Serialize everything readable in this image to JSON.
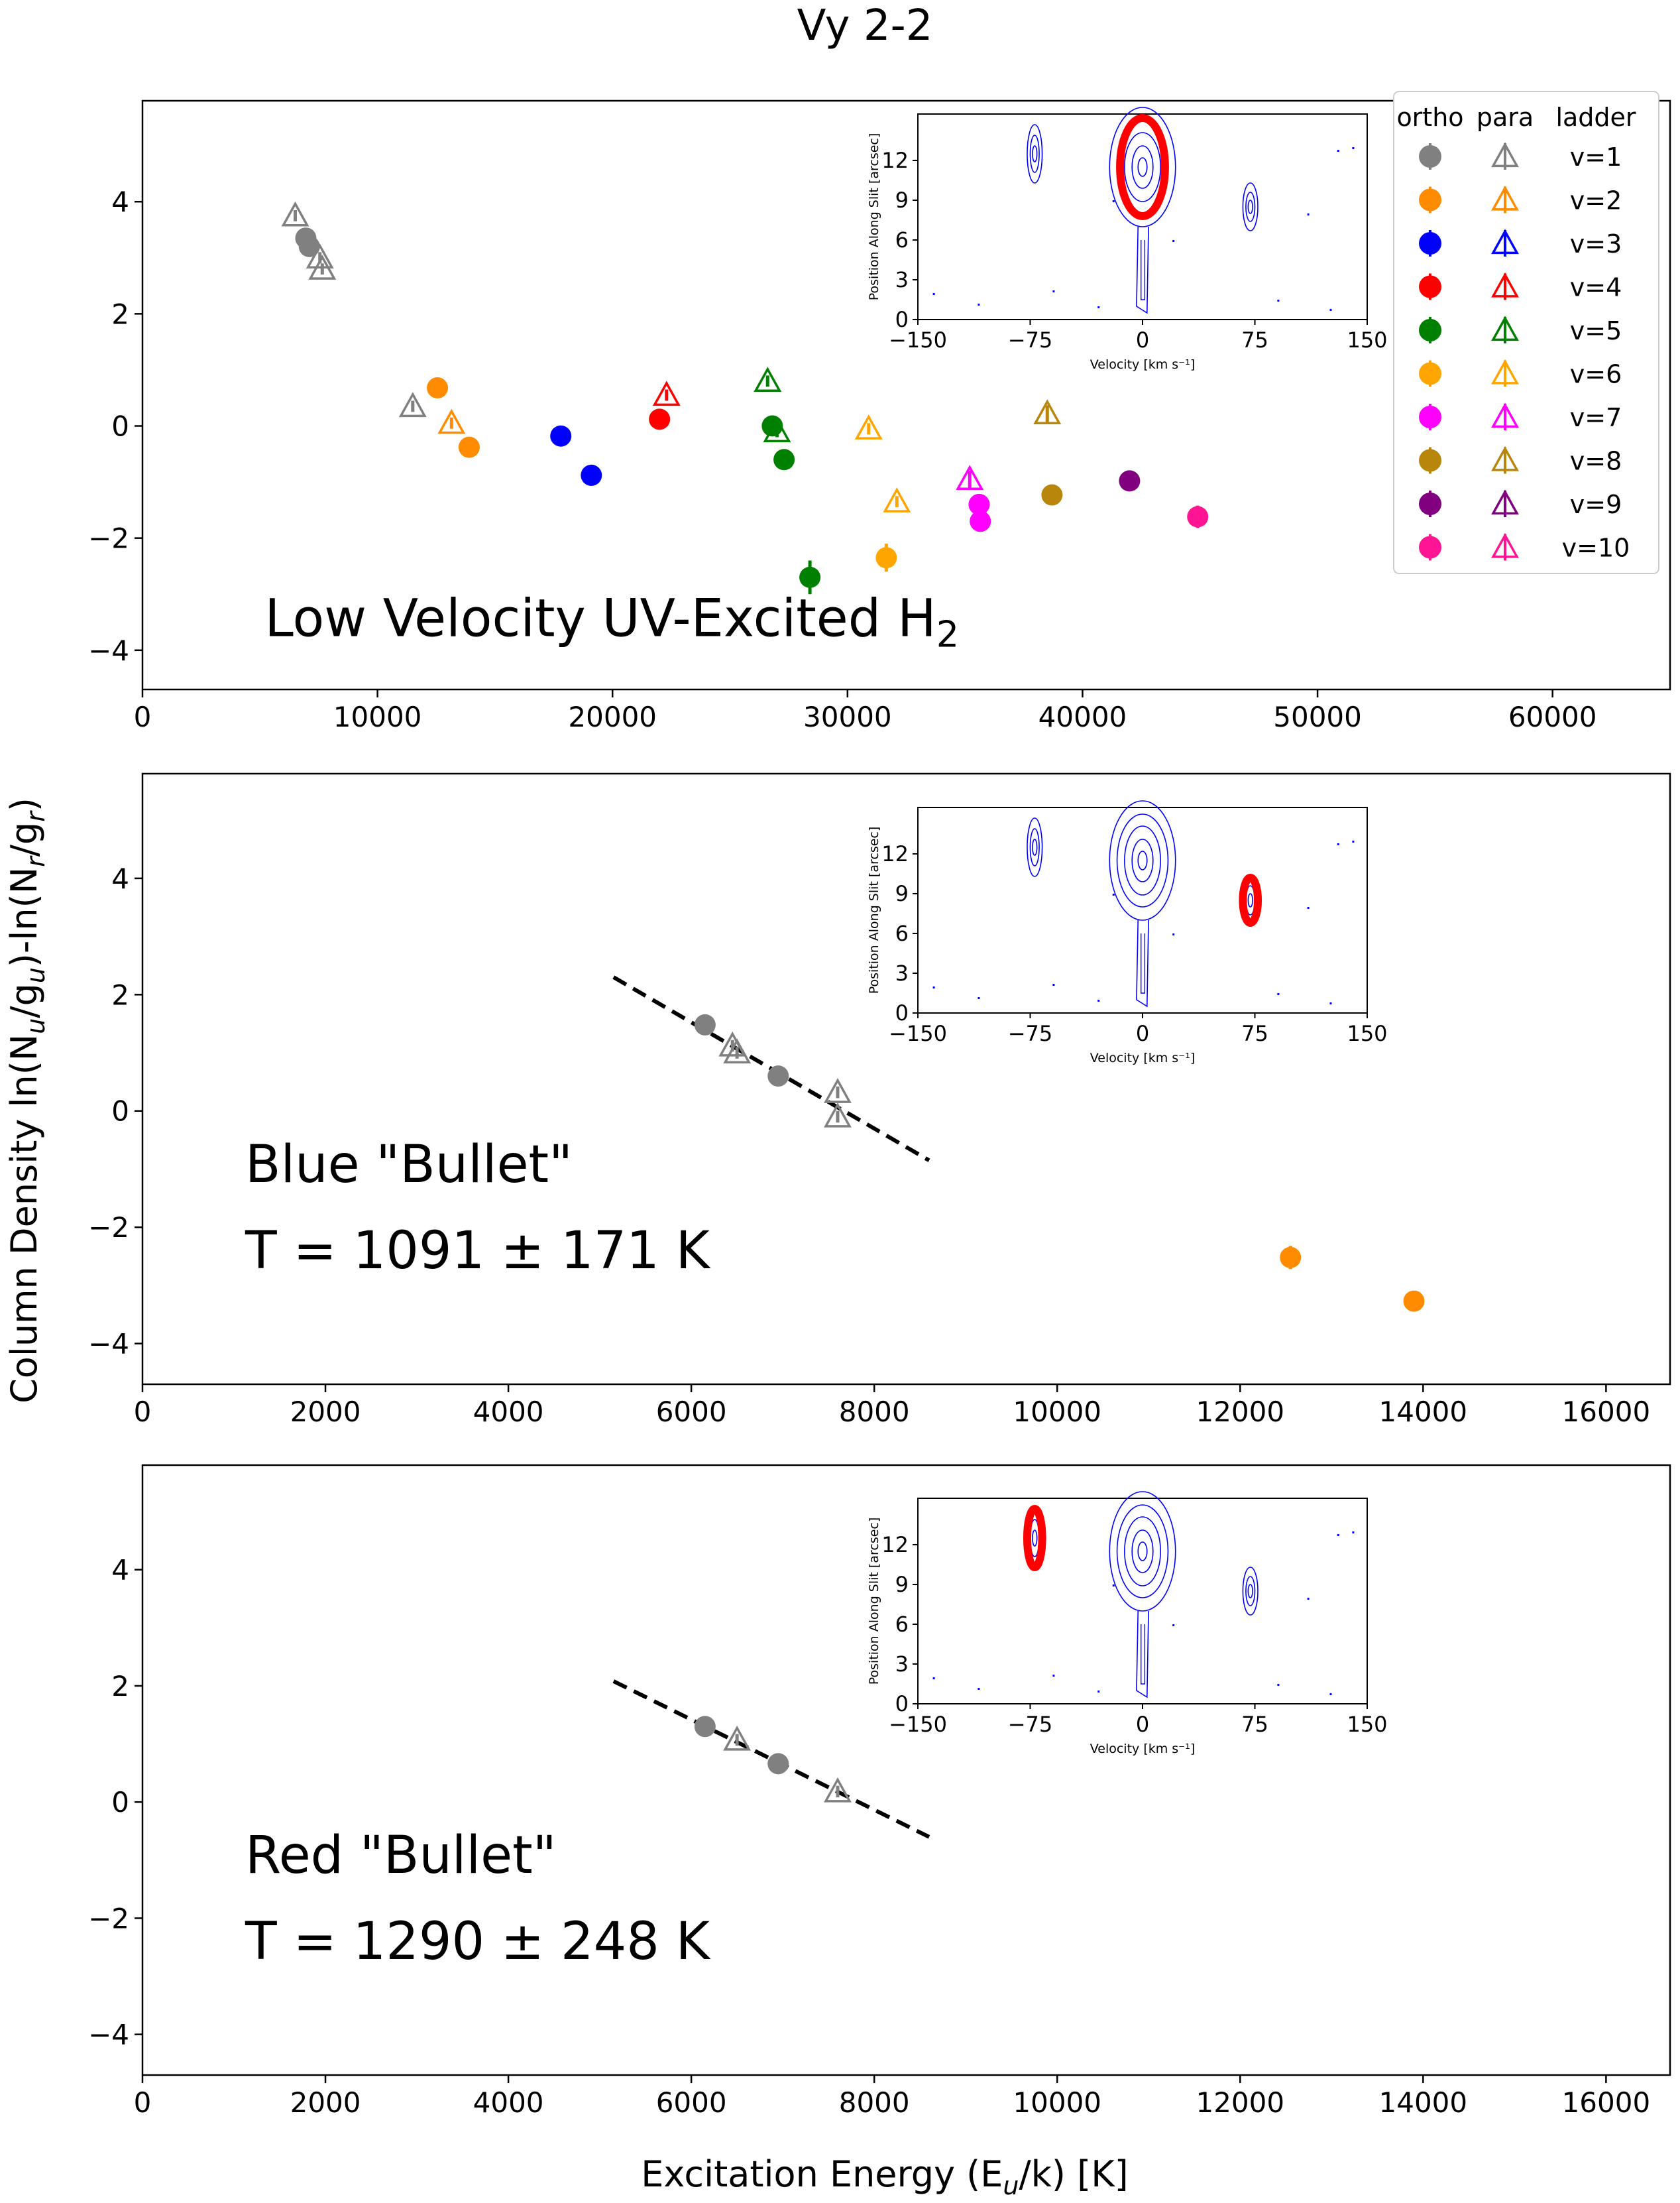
{
  "figure": {
    "title": "Vy 2-2",
    "ylabel": "Column Density    ln(N_u/g_u)-ln(N_r/g_r)",
    "xlabel": "Excitation Energy      (E_u/k)      [K]"
  },
  "legend": {
    "headers": [
      "ortho",
      "para",
      "ladder"
    ],
    "entries": [
      {
        "label": "v=1",
        "color": "#808080"
      },
      {
        "label": "v=2",
        "color": "#ff8c00"
      },
      {
        "label": "v=3",
        "color": "#0000ff"
      },
      {
        "label": "v=4",
        "color": "#ff0000"
      },
      {
        "label": "v=5",
        "color": "#008000"
      },
      {
        "label": "v=6",
        "color": "#ffa500"
      },
      {
        "label": "v=7",
        "color": "#ff00ff"
      },
      {
        "label": "v=8",
        "color": "#b8860b"
      },
      {
        "label": "v=9",
        "color": "#800080"
      },
      {
        "label": "v=10",
        "color": "#ff1493"
      }
    ]
  },
  "inset": {
    "xlabel": "Velocity [km s⁻¹]",
    "ylabel": "Position Along Slit [arcsec]",
    "xticks": [
      "−150",
      "−75",
      "0",
      "75",
      "150"
    ],
    "yticks": [
      "0",
      "3",
      "6",
      "9",
      "12"
    ],
    "highlight_color": "#ff0000",
    "contour_color": "#0000ff"
  },
  "chart_data": [
    {
      "type": "scatter",
      "panel": "top",
      "annotation": "Low Velocity UV-Excited H",
      "annotation_sub": "2",
      "xlim": [
        0,
        65000
      ],
      "ylim": [
        -4.7,
        5.8
      ],
      "xticks": [
        0,
        10000,
        20000,
        30000,
        40000,
        50000,
        60000
      ],
      "yticks": [
        4,
        2,
        0,
        -2,
        -4
      ],
      "inset_highlight": {
        "velocity": 0,
        "position": 11.5,
        "rx": 15,
        "ry": 3.7
      },
      "points": [
        {
          "v": 1,
          "kind": "para",
          "x": 6500,
          "y": 3.75,
          "err": 0.1
        },
        {
          "v": 1,
          "kind": "ortho",
          "x": 6950,
          "y": 3.35,
          "err": 0.1
        },
        {
          "v": 1,
          "kind": "ortho",
          "x": 7100,
          "y": 3.2,
          "err": 0.1
        },
        {
          "v": 1,
          "kind": "para",
          "x": 7550,
          "y": 3.0,
          "err": 0.1
        },
        {
          "v": 1,
          "kind": "para",
          "x": 7650,
          "y": 2.8,
          "err": 0.1
        },
        {
          "v": 1,
          "kind": "para",
          "x": 11500,
          "y": 0.35,
          "err": 0.1
        },
        {
          "v": 2,
          "kind": "ortho",
          "x": 12550,
          "y": 0.68,
          "err": 0.1
        },
        {
          "v": 2,
          "kind": "para",
          "x": 13150,
          "y": 0.05,
          "err": 0.1
        },
        {
          "v": 2,
          "kind": "ortho",
          "x": 13900,
          "y": -0.38,
          "err": 0.1
        },
        {
          "v": 3,
          "kind": "ortho",
          "x": 17800,
          "y": -0.18,
          "err": 0.15
        },
        {
          "v": 3,
          "kind": "ortho",
          "x": 19100,
          "y": -0.88,
          "err": 0.1
        },
        {
          "v": 4,
          "kind": "ortho",
          "x": 22000,
          "y": 0.12,
          "err": 0.1
        },
        {
          "v": 4,
          "kind": "para",
          "x": 22300,
          "y": 0.55,
          "err": 0.1
        },
        {
          "v": 5,
          "kind": "para",
          "x": 26600,
          "y": 0.8,
          "err": 0.1
        },
        {
          "v": 5,
          "kind": "ortho",
          "x": 26800,
          "y": 0.0,
          "err": 0.1
        },
        {
          "v": 5,
          "kind": "para",
          "x": 27000,
          "y": -0.1,
          "err": 0.1
        },
        {
          "v": 5,
          "kind": "ortho",
          "x": 27300,
          "y": -0.6,
          "err": 0.1
        },
        {
          "v": 5,
          "kind": "ortho",
          "x": 28400,
          "y": -2.7,
          "err": 0.3
        },
        {
          "v": 6,
          "kind": "para",
          "x": 30900,
          "y": -0.05,
          "err": 0.1
        },
        {
          "v": 6,
          "kind": "ortho",
          "x": 31650,
          "y": -2.35,
          "err": 0.25
        },
        {
          "v": 6,
          "kind": "para",
          "x": 32100,
          "y": -1.35,
          "err": 0.1
        },
        {
          "v": 7,
          "kind": "para",
          "x": 35200,
          "y": -0.95,
          "err": 0.15
        },
        {
          "v": 7,
          "kind": "ortho",
          "x": 35600,
          "y": -1.4,
          "err": 0.15
        },
        {
          "v": 7,
          "kind": "ortho",
          "x": 35650,
          "y": -1.7,
          "err": 0.15
        },
        {
          "v": 8,
          "kind": "para",
          "x": 38500,
          "y": 0.22,
          "err": 0.15
        },
        {
          "v": 8,
          "kind": "ortho",
          "x": 38700,
          "y": -1.23,
          "err": 0.1
        },
        {
          "v": 9,
          "kind": "ortho",
          "x": 42000,
          "y": -0.98,
          "err": 0.1
        },
        {
          "v": 10,
          "kind": "ortho",
          "x": 44900,
          "y": -1.62,
          "err": 0.2
        }
      ]
    },
    {
      "type": "scatter",
      "panel": "middle",
      "annotation": "Blue \"Bullet\"",
      "temperature": "T = 1091 ± 171 K",
      "xlim": [
        0,
        16700
      ],
      "ylim": [
        -4.7,
        5.8
      ],
      "xticks": [
        0,
        2000,
        4000,
        6000,
        8000,
        10000,
        12000,
        14000,
        16000
      ],
      "yticks": [
        4,
        2,
        0,
        -2,
        -4
      ],
      "fit_line": {
        "x": [
          5150,
          8600
        ],
        "y": [
          2.3,
          -0.85
        ]
      },
      "inset_highlight": {
        "velocity": 72,
        "position": 8.5,
        "rx": 5,
        "ry": 1.7
      },
      "points": [
        {
          "v": 1,
          "kind": "ortho",
          "x": 6150,
          "y": 1.48,
          "err": 0.1
        },
        {
          "v": 1,
          "kind": "para",
          "x": 6450,
          "y": 1.12,
          "err": 0.1
        },
        {
          "v": 1,
          "kind": "para",
          "x": 6500,
          "y": 1.0,
          "err": 0.1
        },
        {
          "v": 1,
          "kind": "ortho",
          "x": 6950,
          "y": 0.6,
          "err": 0.1
        },
        {
          "v": 1,
          "kind": "para",
          "x": 7600,
          "y": 0.32,
          "err": 0.1
        },
        {
          "v": 1,
          "kind": "para",
          "x": 7600,
          "y": -0.1,
          "err": 0.1
        },
        {
          "v": 2,
          "kind": "ortho",
          "x": 12550,
          "y": -2.52,
          "err": 0.2
        },
        {
          "v": 2,
          "kind": "ortho",
          "x": 13900,
          "y": -3.27,
          "err": 0.15
        }
      ]
    },
    {
      "type": "scatter",
      "panel": "bottom",
      "annotation": "Red \"Bullet\"",
      "temperature": "T = 1290 ± 248 K",
      "xlim": [
        0,
        16700
      ],
      "ylim": [
        -4.7,
        5.8
      ],
      "xticks": [
        0,
        2000,
        4000,
        6000,
        8000,
        10000,
        12000,
        14000,
        16000
      ],
      "yticks": [
        4,
        2,
        0,
        -2,
        -4
      ],
      "fit_line": {
        "x": [
          5150,
          8600
        ],
        "y": [
          2.08,
          -0.6
        ]
      },
      "inset_highlight": {
        "velocity": -72,
        "position": 12.5,
        "rx": 5,
        "ry": 2.2
      },
      "points": [
        {
          "v": 1,
          "kind": "ortho",
          "x": 6150,
          "y": 1.3,
          "err": 0.1
        },
        {
          "v": 1,
          "kind": "para",
          "x": 6500,
          "y": 1.07,
          "err": 0.1
        },
        {
          "v": 1,
          "kind": "ortho",
          "x": 6950,
          "y": 0.66,
          "err": 0.1
        },
        {
          "v": 1,
          "kind": "para",
          "x": 7600,
          "y": 0.18,
          "err": 0.1
        }
      ]
    }
  ]
}
